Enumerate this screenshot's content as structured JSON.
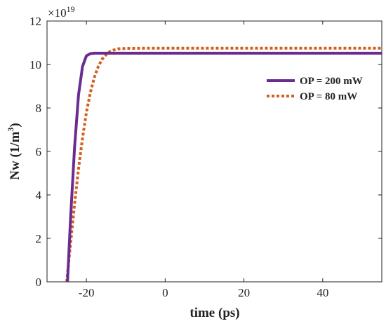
{
  "chart_data": {
    "type": "line",
    "title": "",
    "xlabel": "time (ps)",
    "ylabel": "Nw (1/m",
    "ylabel_sup": "3",
    "ylabel_close": ")",
    "xlim": [
      -30,
      55
    ],
    "ylim": [
      0,
      12
    ],
    "xticks": [
      -20,
      0,
      20,
      40
    ],
    "yticks": [
      0,
      2,
      4,
      6,
      8,
      10,
      12
    ],
    "y_multiplier_base": "×10",
    "y_multiplier_exp": "19",
    "grid": false,
    "legend_position": "top-right",
    "series": [
      {
        "name": "OP = 200 mW",
        "color": "#6a2c91",
        "style": "solid",
        "x": [
          -24.8,
          -24.0,
          -23.0,
          -22.0,
          -21.0,
          -20.0,
          -19.0,
          -18.0,
          -17.0,
          -15.0,
          -12.0,
          -5.0,
          10.0,
          30.0,
          55.0
        ],
        "y": [
          0.0,
          3.0,
          6.2,
          8.6,
          9.9,
          10.4,
          10.5,
          10.52,
          10.52,
          10.52,
          10.52,
          10.52,
          10.52,
          10.52,
          10.52
        ]
      },
      {
        "name": "OP = 80 mW",
        "color": "#d45f1e",
        "style": "dotted",
        "x": [
          -25.0,
          -24.0,
          -23.0,
          -22.0,
          -21.0,
          -20.0,
          -19.0,
          -18.0,
          -17.0,
          -16.0,
          -15.0,
          -14.0,
          -13.0,
          -12.0,
          -10.0,
          -5.0,
          10.0,
          30.0,
          55.0
        ],
        "y": [
          0.0,
          1.8,
          3.6,
          5.2,
          6.6,
          7.8,
          8.7,
          9.4,
          9.9,
          10.25,
          10.45,
          10.6,
          10.67,
          10.72,
          10.74,
          10.75,
          10.75,
          10.75,
          10.75
        ]
      }
    ]
  }
}
